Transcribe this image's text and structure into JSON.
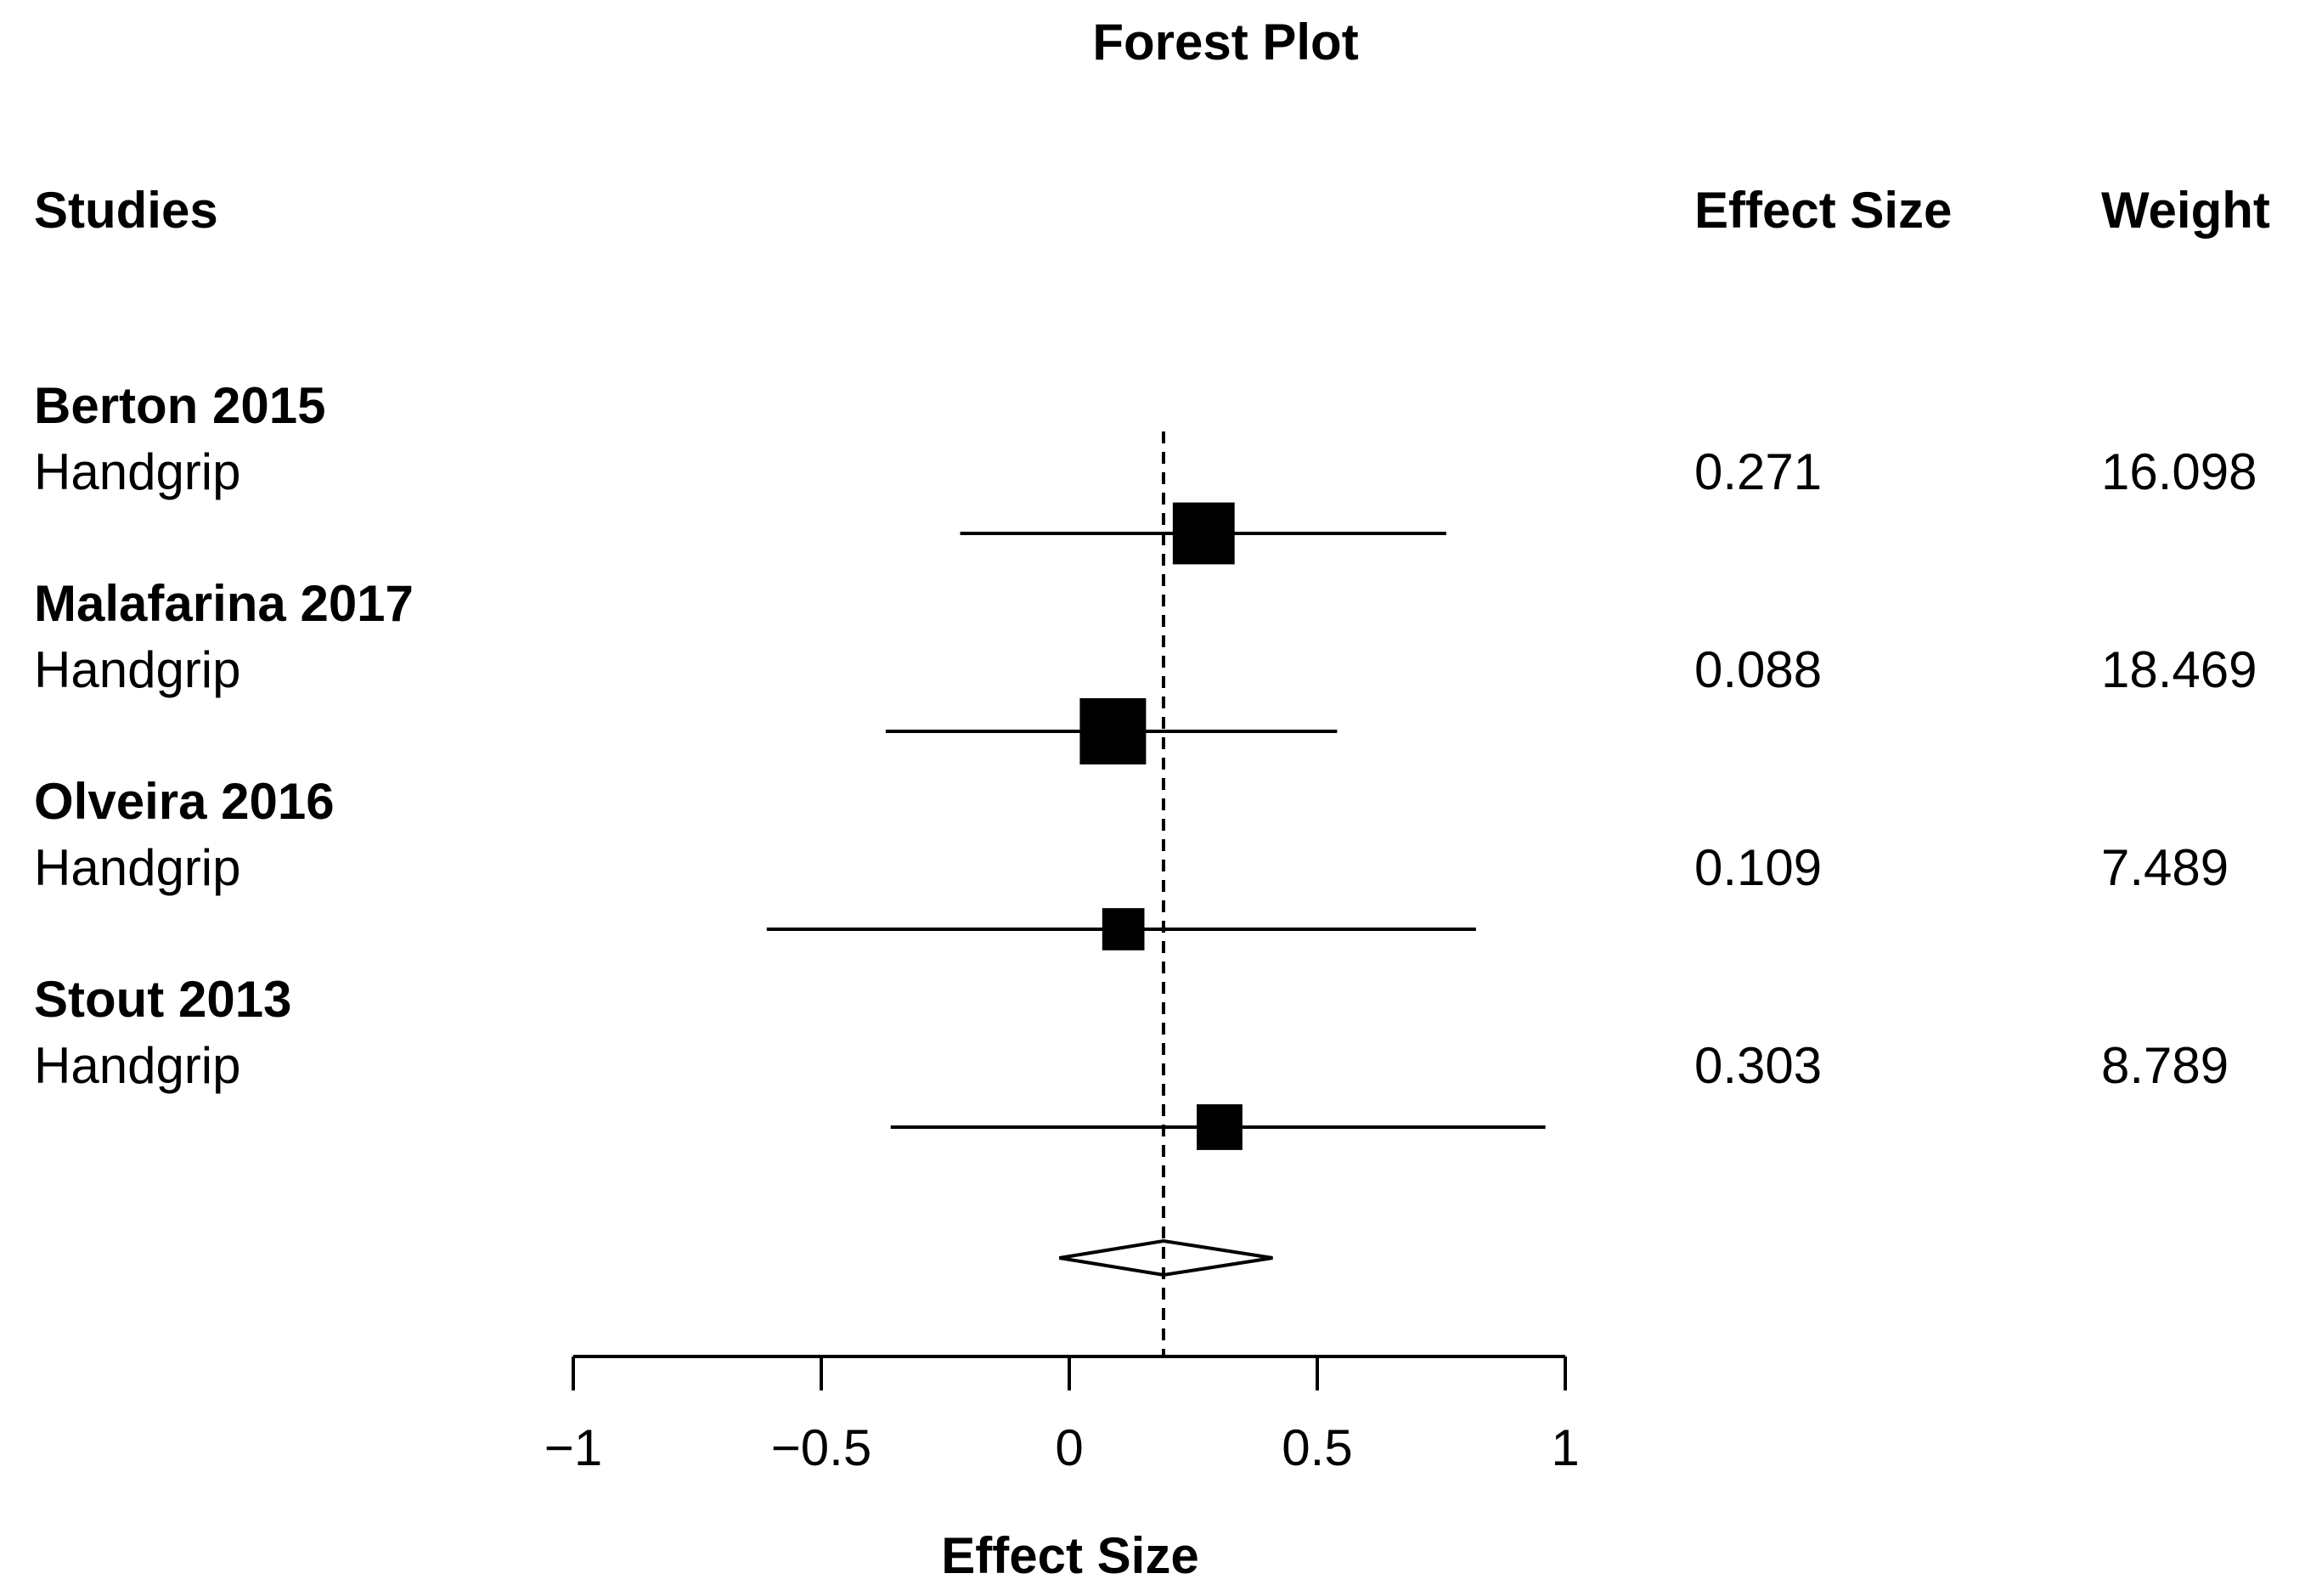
{
  "chart_data": {
    "type": "forest",
    "title": "Forest Plot",
    "columns": {
      "studies": "Studies",
      "effect": "Effect Size",
      "weight": "Weight"
    },
    "xlabel": "Effect Size",
    "xlim": [
      -1,
      1
    ],
    "xticks": [
      -1,
      -0.5,
      0,
      0.5,
      1
    ],
    "xtick_labels": [
      "−1",
      "−0.5",
      "0",
      "0.5",
      "1"
    ],
    "summary_effect": 0.19,
    "summary_ci": [
      -0.02,
      0.41
    ],
    "studies": [
      {
        "name": "Berton 2015",
        "outcome": "Handgrip",
        "effect": 0.271,
        "effect_label": "0.271",
        "ci": [
          -0.22,
          0.76
        ],
        "weight": 16.098,
        "weight_label": "16.098"
      },
      {
        "name": "Malafarina 2017",
        "outcome": "Handgrip",
        "effect": 0.088,
        "effect_label": "0.088",
        "ci": [
          -0.37,
          0.54
        ],
        "weight": 18.469,
        "weight_label": "18.469"
      },
      {
        "name": "Olveira 2016",
        "outcome": "Handgrip",
        "effect": 0.109,
        "effect_label": "0.109",
        "ci": [
          -0.61,
          0.82
        ],
        "weight": 7.489,
        "weight_label": "7.489"
      },
      {
        "name": "Stout 2013",
        "outcome": "Handgrip",
        "effect": 0.303,
        "effect_label": "0.303",
        "ci": [
          -0.36,
          0.96
        ],
        "weight": 8.789,
        "weight_label": "8.789"
      }
    ]
  }
}
